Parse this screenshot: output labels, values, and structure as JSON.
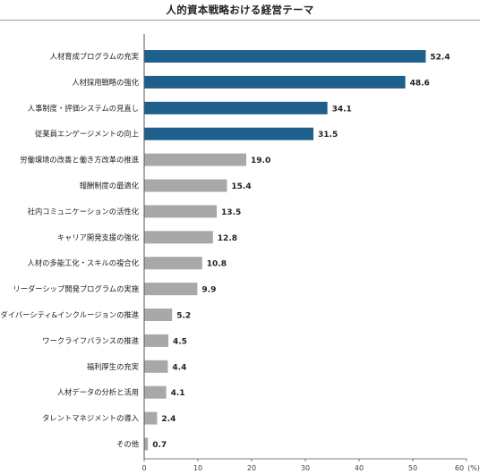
{
  "title": "人的資本戦略おける経営テーマ",
  "chart_data": {
    "type": "bar",
    "orientation": "horizontal",
    "title": "人的資本戦略おける経営テーマ",
    "unit": "(%)",
    "xlim": [
      0,
      60
    ],
    "xticks": [
      "0",
      "10",
      "20",
      "30",
      "40",
      "50",
      "60"
    ],
    "grid": false,
    "categories": [
      "人材育成プログラムの充実",
      "人材採用戦略の強化",
      "人事制度・評価システムの見直し",
      "従業員エンゲージメントの向上",
      "労働環境の改善と働き方改革の推進",
      "報酬制度の最適化",
      "社内コミュニケーションの活性化",
      "キャリア開発支援の強化",
      "人材の多能工化・スキルの複合化",
      "リーダーシップ開発プログラムの実施",
      "ダイバーシティ&インクルージョンの推進",
      "ワークライフバランスの推進",
      "福利厚生の充実",
      "人材データの分析と活用",
      "タレントマネジメントの導入",
      "その他"
    ],
    "values": [
      52.4,
      48.6,
      34.1,
      31.5,
      19.0,
      15.4,
      13.5,
      12.8,
      10.8,
      9.9,
      5.2,
      4.5,
      4.4,
      4.1,
      2.4,
      0.7
    ],
    "value_labels": [
      "52.4",
      "48.6",
      "34.1",
      "31.5",
      "19.0",
      "15.4",
      "13.5",
      "12.8",
      "10.8",
      "9.9",
      "5.2",
      "4.5",
      "4.4",
      "4.1",
      "2.4",
      "0.7"
    ],
    "highlight_count": 4,
    "colors": {
      "highlight": "#1f5f8b",
      "default": "#a8a8a8",
      "axis": "#555555"
    }
  }
}
